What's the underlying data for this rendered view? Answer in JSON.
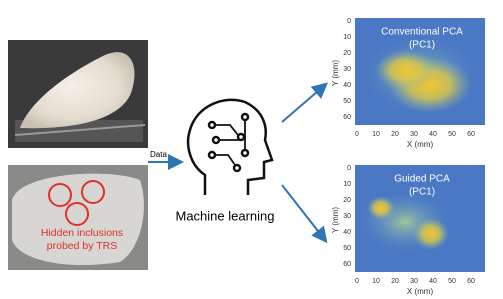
{
  "data_label": "Data",
  "photo_caption": [
    "Hidden inclusions",
    "probed by TRS"
  ],
  "center_label": "Machine learning",
  "panels": [
    {
      "title": [
        "Conventional PCA",
        "(PC1)"
      ],
      "xlabel": "X (mm)",
      "ylabel": "Y (mm)",
      "xticks": [
        0,
        10,
        20,
        30,
        40,
        50,
        60
      ],
      "yticks": [
        0,
        10,
        20,
        30,
        40,
        50,
        60
      ]
    },
    {
      "title": [
        "Guided PCA",
        "(PC1)"
      ],
      "xlabel": "X (mm)",
      "ylabel": "Y (mm)",
      "xticks": [
        0,
        10,
        20,
        30,
        40,
        50,
        60
      ],
      "yticks": [
        0,
        10,
        20,
        30,
        40,
        50,
        60
      ]
    }
  ]
}
